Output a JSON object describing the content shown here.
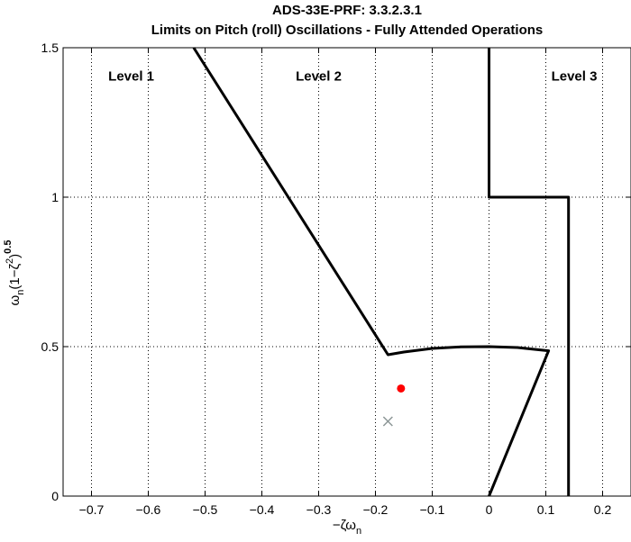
{
  "chart_data": {
    "type": "line",
    "title": "ADS-33E-PRF: 3.3.2.3.1",
    "subtitle": "Limits on Pitch (roll) Oscillations - Fully Attended Operations",
    "xlabel": "−ζω",
    "xlabel_subscript": "n",
    "ylabel": "ω",
    "ylabel_subscript": "n",
    "ylabel_rest": "(1−ζ",
    "ylabel_superscript_2": "2",
    "ylabel_close": ")",
    "ylabel_superscript_exp": "0.5",
    "xlim": [
      -0.75,
      0.25
    ],
    "ylim": [
      0,
      1.5
    ],
    "xticks": [
      -0.7,
      -0.6,
      -0.5,
      -0.4,
      -0.3,
      -0.2,
      -0.1,
      0,
      0.1,
      0.2
    ],
    "xtick_labels": [
      "−0.7",
      "−0.6",
      "−0.5",
      "−0.4",
      "−0.3",
      "−0.2",
      "−0.1",
      "0",
      "0.1",
      "0.2"
    ],
    "yticks": [
      0,
      0.5,
      1,
      1.5
    ],
    "ytick_labels": [
      "0",
      "0.5",
      "1",
      "1.5"
    ],
    "grid": true,
    "grid_style": "dotted",
    "boundary_color": "#000000",
    "boundaries": [
      {
        "name": "Level 1/2 boundary",
        "points": [
          [
            -0.52,
            1.5
          ],
          [
            -0.178,
            0.473
          ],
          [
            -0.15,
            0.482
          ],
          [
            -0.1,
            0.494
          ],
          [
            -0.05,
            0.499
          ],
          [
            0.0,
            0.5
          ],
          [
            0.05,
            0.497
          ],
          [
            0.08,
            0.491
          ],
          [
            0.105,
            0.486
          ],
          [
            0.0,
            0.0
          ]
        ]
      },
      {
        "name": "Level 2/3 boundary",
        "points": [
          [
            0.0,
            1.5
          ],
          [
            0.0,
            1.0
          ],
          [
            0.14,
            1.0
          ],
          [
            0.14,
            0.0
          ]
        ]
      }
    ],
    "annotations": [
      {
        "text": "Level 1",
        "x": -0.63,
        "y": 1.39
      },
      {
        "text": "Level 2",
        "x": -0.3,
        "y": 1.39
      },
      {
        "text": "Level 3",
        "x": 0.15,
        "y": 1.39
      }
    ],
    "markers": [
      {
        "name": "red-dot",
        "shape": "circle",
        "color": "#ff0000",
        "x": -0.155,
        "y": 0.36
      },
      {
        "name": "gray-cross",
        "shape": "x",
        "color": "#8c9696",
        "x": -0.178,
        "y": 0.25
      }
    ]
  }
}
